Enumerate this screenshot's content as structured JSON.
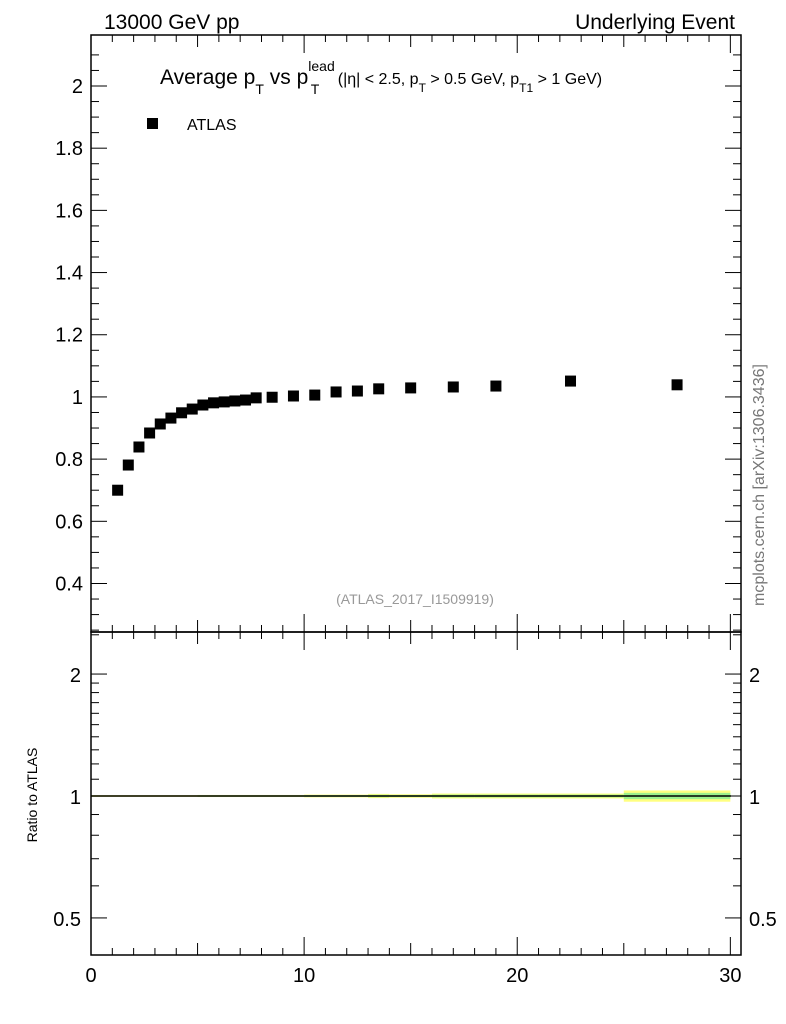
{
  "header": {
    "left": "13000 GeV pp",
    "right": "Underlying Event",
    "side_label": "mcplots.cern.ch [arXiv:1306.3436]"
  },
  "chart_data": [
    {
      "type": "scatter",
      "title_parts": {
        "a": "Average p",
        "a_sub": "T",
        "b": " vs p",
        "b_sub": "T",
        "b_sup": "lead",
        "c": " (|η| < 2.5, p",
        "c_sub": "T",
        "d": " > 0.5 GeV, p",
        "d_sub": "T1",
        "e": " > 1 GeV)"
      },
      "legend": [
        {
          "name": "ATLAS",
          "marker": "square",
          "color": "#000000"
        }
      ],
      "legend_position": "top-left",
      "annotation": "(ATLAS_2017_I1509919)",
      "xlim": [
        0,
        30.5
      ],
      "ylim": [
        0.244,
        2.164
      ],
      "yticks": [
        "0.4",
        "0.6",
        "0.8",
        "1",
        "1.2",
        "1.4",
        "1.6",
        "1.8",
        "2"
      ],
      "series": [
        {
          "name": "ATLAS",
          "x": [
            1.25,
            1.75,
            2.25,
            2.75,
            3.25,
            3.75,
            4.25,
            4.75,
            5.25,
            5.75,
            6.25,
            6.75,
            7.25,
            7.75,
            8.5,
            9.5,
            10.5,
            11.5,
            12.5,
            13.5,
            15,
            17,
            19,
            22.5,
            27.5
          ],
          "y": [
            0.7,
            0.781,
            0.839,
            0.884,
            0.913,
            0.932,
            0.949,
            0.961,
            0.974,
            0.981,
            0.984,
            0.987,
            0.99,
            0.997,
            0.999,
            1.003,
            1.006,
            1.016,
            1.019,
            1.026,
            1.029,
            1.032,
            1.035,
            1.051,
            1.039
          ]
        }
      ]
    },
    {
      "type": "line",
      "ylabel": "Ratio to ATLAS",
      "yscale": "log",
      "ylim": [
        0.405,
        2.54
      ],
      "yticks": [
        "0.5",
        "1",
        "2"
      ],
      "xlim": [
        0,
        30.5
      ],
      "xticks": [
        "0",
        "10",
        "20",
        "30"
      ],
      "reference": 1,
      "band_bins": [
        [
          0,
          5
        ],
        [
          5,
          10
        ],
        [
          10,
          13
        ],
        [
          13,
          14
        ],
        [
          14,
          16
        ],
        [
          16,
          18
        ],
        [
          18,
          21
        ],
        [
          21,
          25
        ],
        [
          25,
          30
        ]
      ],
      "band_yellow": [
        0.005,
        0.006,
        0.008,
        0.012,
        0.01,
        0.014,
        0.014,
        0.014,
        0.032
      ],
      "band_green": [
        0.003,
        0.004,
        0.005,
        0.007,
        0.006,
        0.008,
        0.008,
        0.008,
        0.018
      ]
    }
  ]
}
